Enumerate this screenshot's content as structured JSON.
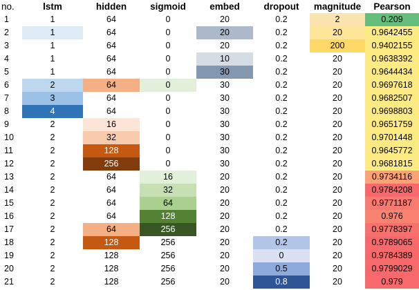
{
  "columns": [
    "no.",
    "lstm",
    "hidden",
    "sigmoid",
    "embed",
    "dropout",
    "magnitude",
    "Pearson"
  ],
  "rows": [
    [
      "1",
      "1",
      "64",
      "0",
      "20",
      "0.2",
      "2",
      "0.209"
    ],
    [
      "2",
      "1",
      "64",
      "0",
      "20",
      "0.2",
      "20",
      "0.9642455"
    ],
    [
      "3",
      "1",
      "64",
      "0",
      "20",
      "0.2",
      "200",
      "0.9402155"
    ],
    [
      "4",
      "1",
      "64",
      "0",
      "10",
      "0.2",
      "20",
      "0.9638392"
    ],
    [
      "5",
      "1",
      "64",
      "0",
      "30",
      "0.2",
      "20",
      "0.9644434"
    ],
    [
      "6",
      "2",
      "64",
      "0",
      "30",
      "0.2",
      "20",
      "0.9697618"
    ],
    [
      "7",
      "3",
      "64",
      "0",
      "30",
      "0.2",
      "20",
      "0.9682507"
    ],
    [
      "8",
      "4",
      "64",
      "0",
      "30",
      "0.2",
      "20",
      "0.9698803"
    ],
    [
      "9",
      "2",
      "16",
      "0",
      "30",
      "0.2",
      "20",
      "0.9651759"
    ],
    [
      "10",
      "2",
      "32",
      "0",
      "30",
      "0.2",
      "20",
      "0.9701448"
    ],
    [
      "11",
      "2",
      "128",
      "0",
      "30",
      "0.2",
      "20",
      "0.9645772"
    ],
    [
      "12",
      "2",
      "256",
      "0",
      "30",
      "0.2",
      "20",
      "0.9681815"
    ],
    [
      "13",
      "2",
      "64",
      "16",
      "20",
      "0.2",
      "20",
      "0.9734116"
    ],
    [
      "14",
      "2",
      "64",
      "32",
      "20",
      "0.2",
      "20",
      "0.9784208"
    ],
    [
      "15",
      "2",
      "64",
      "64",
      "20",
      "0.2",
      "20",
      "0.9771187"
    ],
    [
      "16",
      "2",
      "64",
      "128",
      "20",
      "0.2",
      "20",
      "0.976"
    ],
    [
      "17",
      "2",
      "64",
      "256",
      "20",
      "0.2",
      "20",
      "0.9778397"
    ],
    [
      "18",
      "2",
      "128",
      "256",
      "20",
      "0.2",
      "20",
      "0.9789065"
    ],
    [
      "19",
      "2",
      "128",
      "256",
      "20",
      "0",
      "20",
      "0.9784389"
    ],
    [
      "20",
      "2",
      "128",
      "256",
      "20",
      "0.5",
      "20",
      "0.9799029"
    ],
    [
      "21",
      "2",
      "128",
      "256",
      "20",
      "0.8",
      "20",
      "0.979"
    ]
  ],
  "cell_colors": [
    [
      "",
      "",
      "",
      "",
      "",
      "",
      "#FCE4B0",
      "#63BE7B"
    ],
    [
      "",
      "#DDEBF7",
      "",
      "",
      "#ACB9CA",
      "",
      "#FFE699",
      "#FFEB84"
    ],
    [
      "",
      "",
      "",
      "",
      "",
      "",
      "#FFD966",
      "#FFEB84"
    ],
    [
      "",
      "",
      "",
      "",
      "#D6DCE4",
      "",
      "",
      "#FFEB84"
    ],
    [
      "",
      "",
      "",
      "",
      "#8497B0",
      "",
      "",
      "#FFEB84"
    ],
    [
      "",
      "#BDD7EE",
      "#F4B084",
      "#E2EFDA",
      "",
      "",
      "",
      "#FFEB84"
    ],
    [
      "",
      "#9BC2E6",
      "",
      "",
      "",
      "",
      "",
      "#FFEB84"
    ],
    [
      "",
      "#2F75B5",
      "",
      "",
      "",
      "",
      "",
      "#FFEB84"
    ],
    [
      "",
      "",
      "#FCE4D6",
      "",
      "",
      "",
      "",
      "#FFEB84"
    ],
    [
      "",
      "",
      "#F8CBAD",
      "",
      "",
      "",
      "",
      "#FFEB84"
    ],
    [
      "",
      "",
      "#C65911",
      "",
      "",
      "",
      "",
      "#FFEB84"
    ],
    [
      "",
      "",
      "#833C0C",
      "",
      "",
      "",
      "",
      "#FFEB84"
    ],
    [
      "",
      "",
      "",
      "#E2EFDA",
      "",
      "",
      "",
      "#FBA276"
    ],
    [
      "",
      "",
      "",
      "#C6E0B4",
      "",
      "",
      "",
      "#F8696B"
    ],
    [
      "",
      "",
      "",
      "#A9D08E",
      "",
      "",
      "",
      "#F97A70"
    ],
    [
      "",
      "",
      "",
      "#548235",
      "",
      "",
      "",
      "#F98370"
    ],
    [
      "",
      "",
      "#F4B084",
      "#375623",
      "",
      "",
      "",
      "#F8726D"
    ],
    [
      "",
      "",
      "#C65911",
      "",
      "",
      "#B4C6E7",
      "",
      "#F8696B"
    ],
    [
      "",
      "",
      "",
      "",
      "",
      "#D9E1F2",
      "",
      "#F8696B"
    ],
    [
      "",
      "",
      "",
      "",
      "",
      "#8EA9DB",
      "",
      "#F8696B"
    ],
    [
      "",
      "",
      "",
      "",
      "",
      "#2F5597",
      "",
      "#F8696B"
    ]
  ],
  "white_text_cells": [
    [
      7,
      1
    ],
    [
      10,
      2
    ],
    [
      11,
      2
    ],
    [
      15,
      3
    ],
    [
      16,
      3
    ],
    [
      17,
      2
    ],
    [
      20,
      5
    ]
  ]
}
